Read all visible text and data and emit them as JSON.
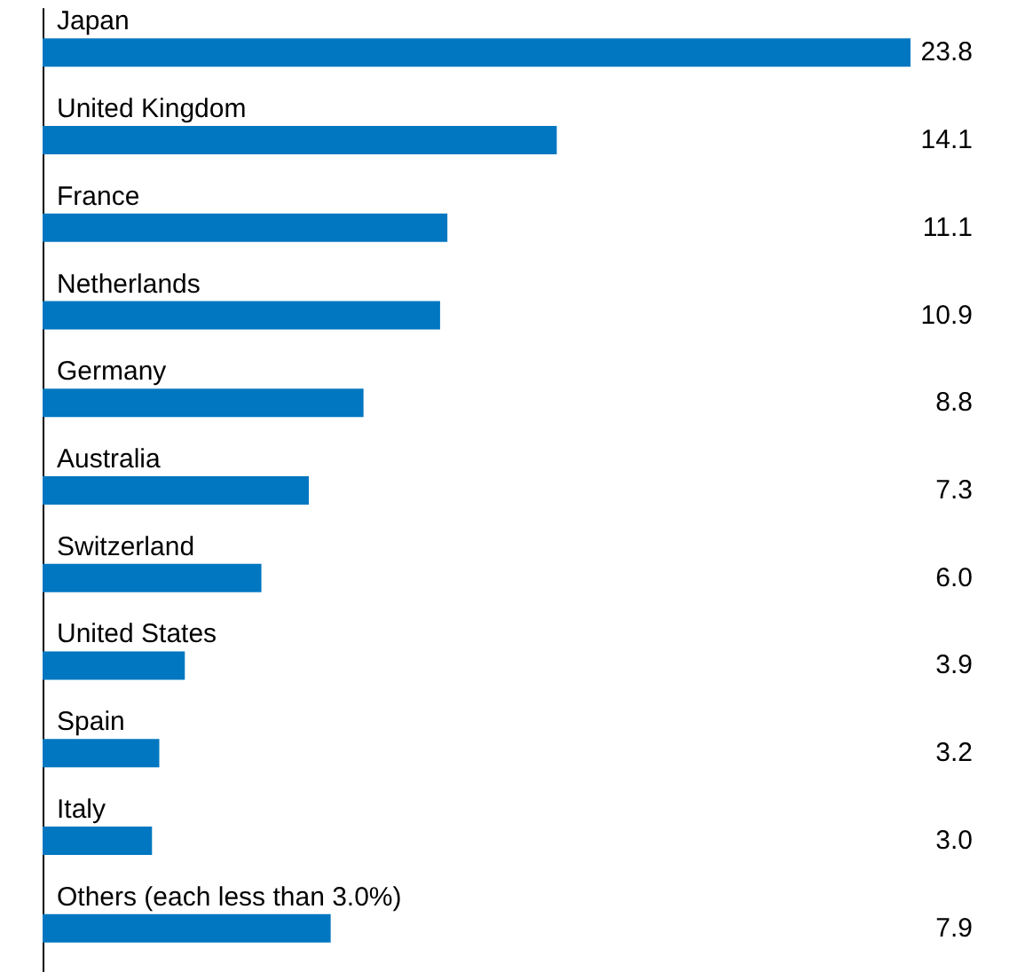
{
  "chart_data": {
    "type": "bar",
    "orientation": "horizontal",
    "tick_labels": "y",
    "categories": [
      "Japan",
      "United Kingdom",
      "France",
      "Netherlands",
      "Germany",
      "Australia",
      "Switzerland",
      "United States",
      "Spain",
      "Italy",
      "Others (each less than 3.0%)"
    ],
    "values": [
      23.8,
      14.1,
      11.1,
      10.9,
      8.8,
      7.3,
      6.0,
      3.9,
      3.2,
      3.0,
      7.9
    ],
    "value_labels": [
      "23.8",
      "14.1",
      "11.1",
      "10.9",
      "8.8",
      "7.3",
      "6.0",
      "3.9",
      "3.2",
      "3.0",
      "7.9"
    ],
    "color": "#0077c0"
  }
}
